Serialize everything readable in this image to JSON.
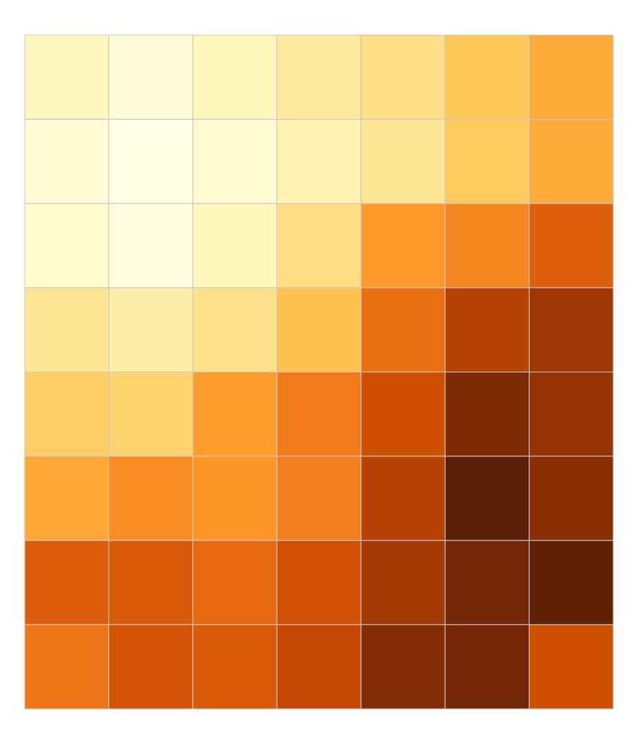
{
  "chart_data": {
    "type": "heatmap",
    "title": "",
    "xlabel": "",
    "ylabel": "",
    "rows": 8,
    "cols": 7,
    "values": [
      [
        0.12,
        0.04,
        0.13,
        0.21,
        0.27,
        0.36,
        0.45
      ],
      [
        0.05,
        0.0,
        0.06,
        0.15,
        0.24,
        0.35,
        0.45
      ],
      [
        0.07,
        0.03,
        0.13,
        0.28,
        0.5,
        0.56,
        0.68
      ],
      [
        0.24,
        0.19,
        0.26,
        0.38,
        0.63,
        0.8,
        0.86
      ],
      [
        0.33,
        0.31,
        0.49,
        0.59,
        0.74,
        0.92,
        0.88
      ],
      [
        0.46,
        0.54,
        0.51,
        0.58,
        0.8,
        0.98,
        0.9
      ],
      [
        0.69,
        0.7,
        0.65,
        0.73,
        0.85,
        0.94,
        0.97
      ],
      [
        0.61,
        0.72,
        0.7,
        0.77,
        0.91,
        0.94,
        0.74
      ]
    ],
    "color_stops": [
      "#ffffe5",
      "#fff7bc",
      "#fee391",
      "#fec44f",
      "#fe9929",
      "#ec7014",
      "#cc4c02",
      "#993404",
      "#4f1b08"
    ],
    "cell_border_color": "#c8c8c8",
    "grid": true,
    "legend": "none"
  }
}
